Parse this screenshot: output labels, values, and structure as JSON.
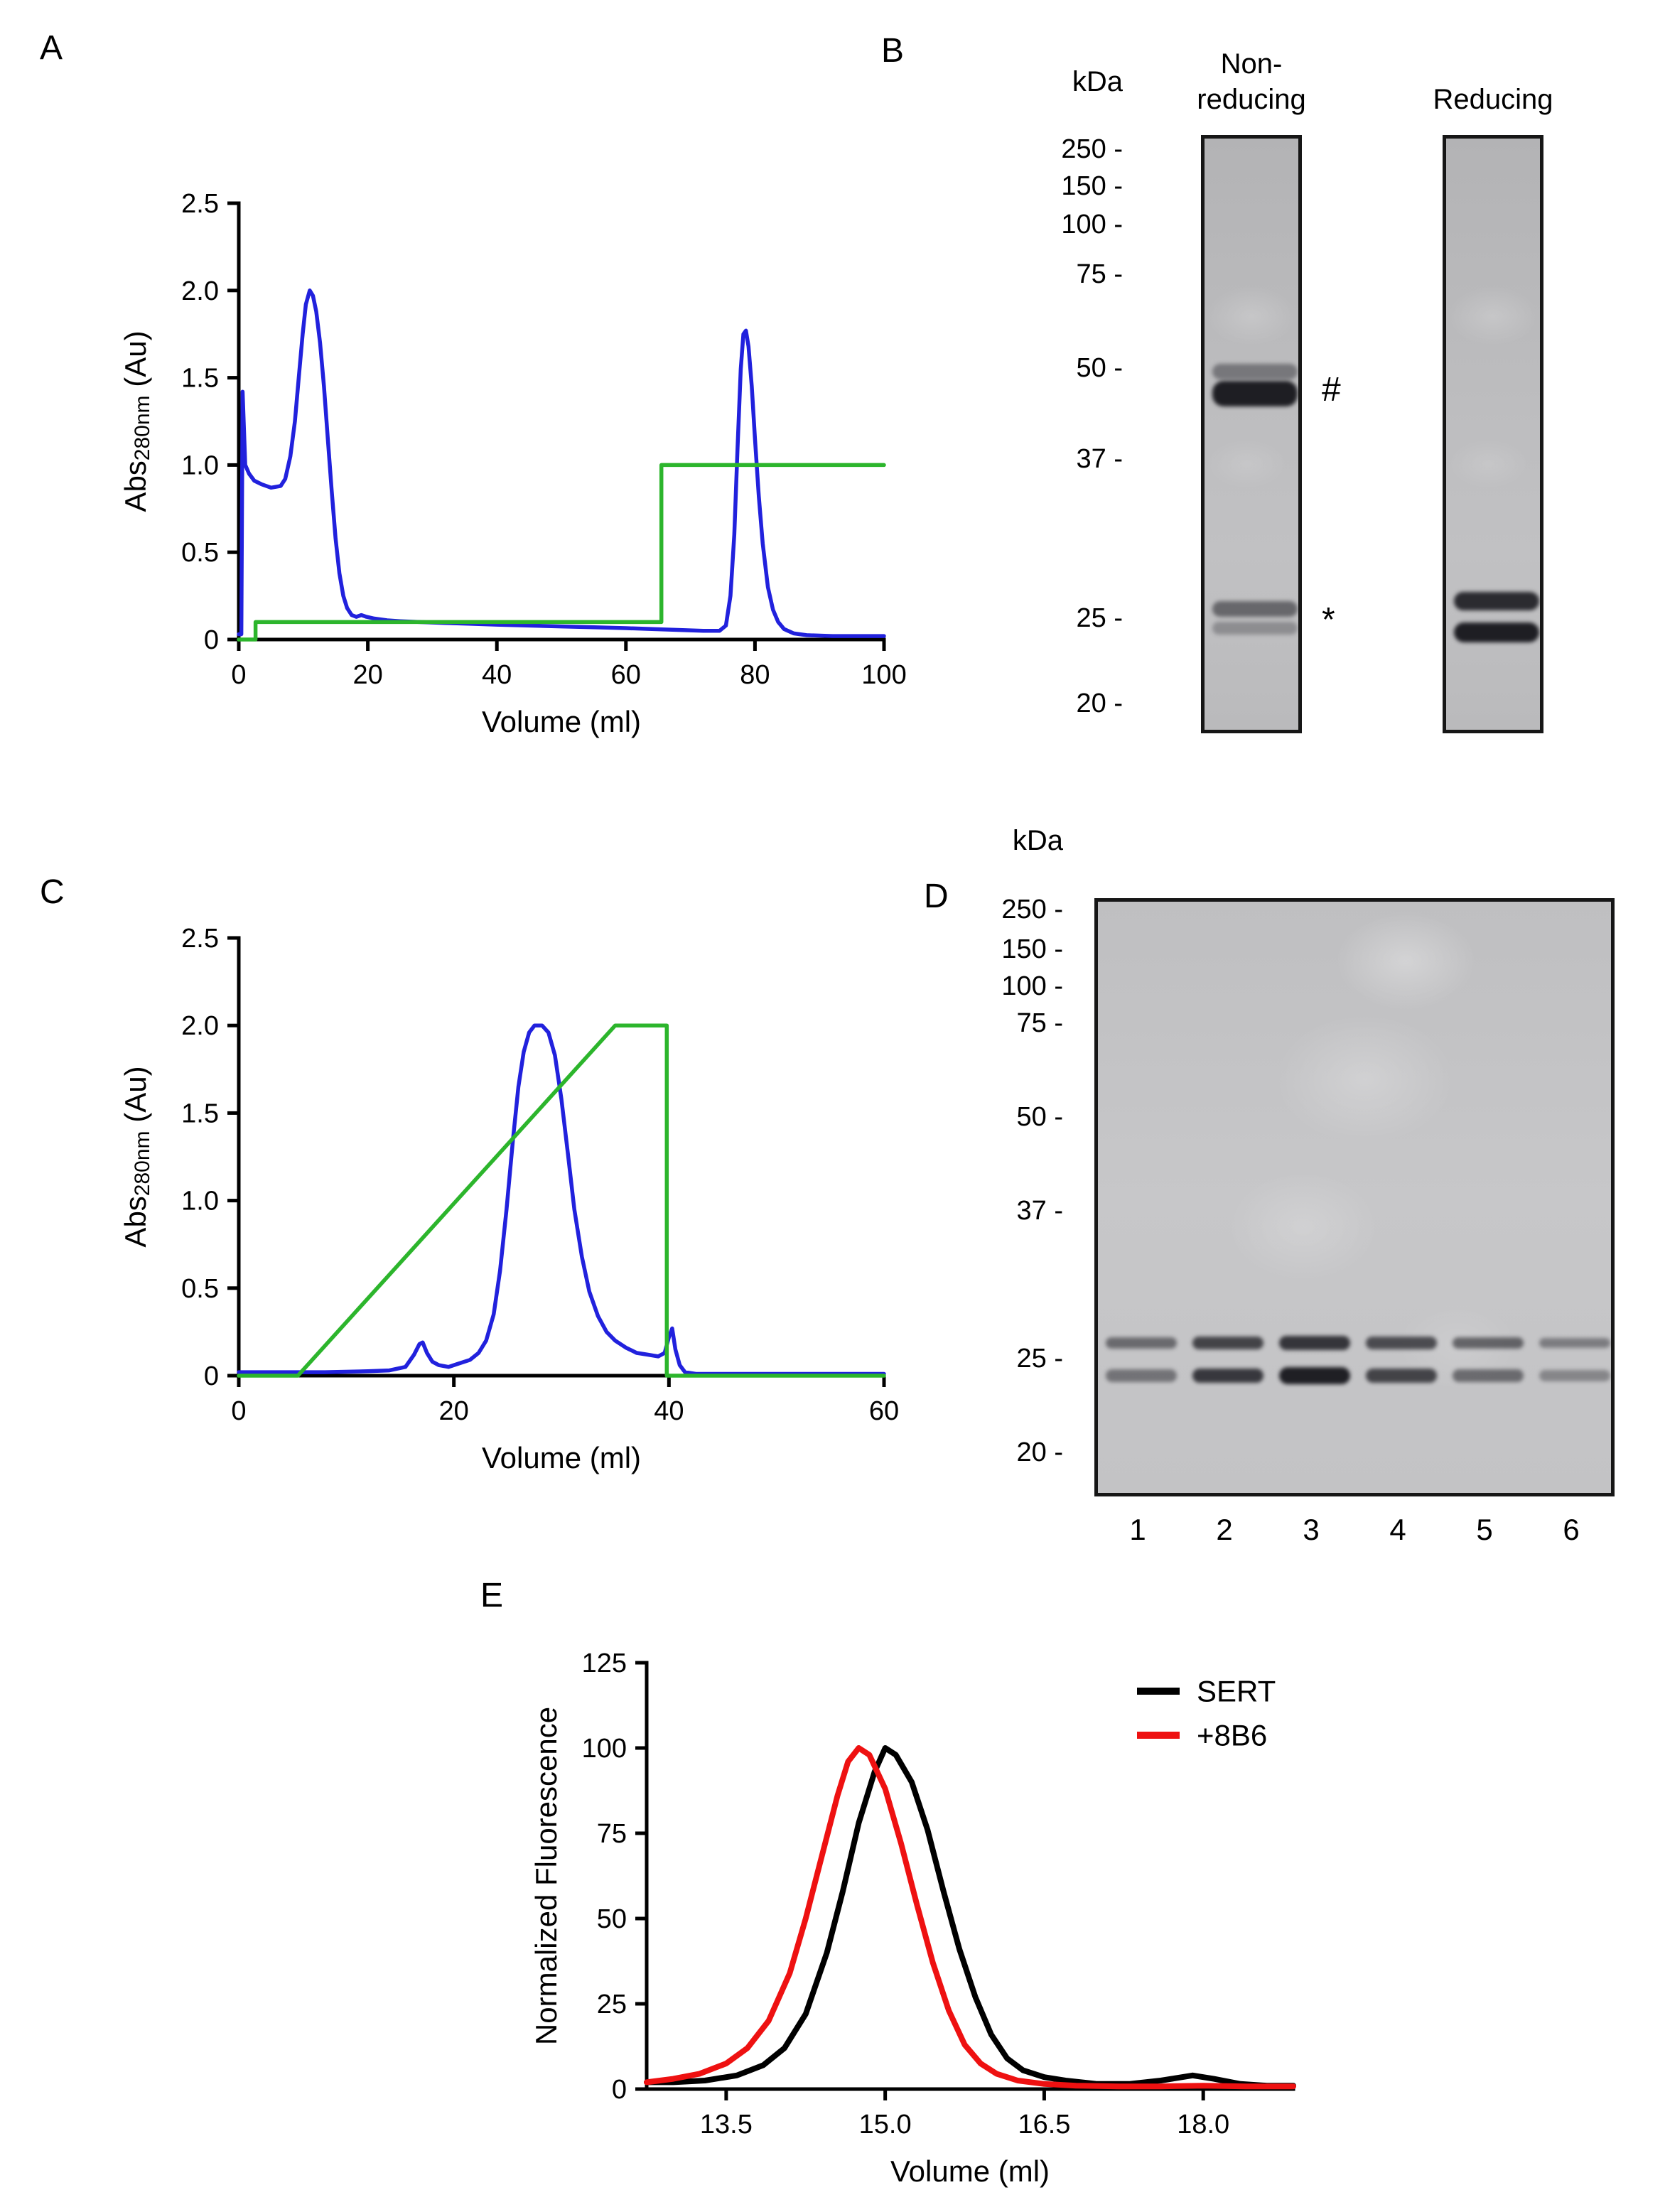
{
  "panel_labels": {
    "A": "A",
    "B": "B",
    "C": "C",
    "D": "D",
    "E": "E"
  },
  "chart_data": [
    {
      "id": "chrom_a",
      "panel": "A",
      "type": "line",
      "title": "",
      "xlabel": "Volume (ml)",
      "ylabel_parts": [
        {
          "text": "Abs"
        },
        {
          "text": "280nm",
          "sub": true
        },
        {
          "text": " (Au)"
        }
      ],
      "xlim": [
        0,
        100
      ],
      "ylim": [
        0,
        2.5
      ],
      "xticks": {
        "values": [
          0,
          20,
          40,
          60,
          80,
          100
        ],
        "labels": [
          "0",
          "20",
          "40",
          "60",
          "80",
          "100"
        ]
      },
      "yticks": {
        "values": [
          0,
          0.5,
          1,
          1.5,
          2,
          2.5
        ],
        "labels": [
          "0",
          "0.5",
          "1.0",
          "1.5",
          "2.0",
          "2.5"
        ]
      },
      "grid": false,
      "series": [
        {
          "id": "uv-absorbance",
          "color": "#2121dd",
          "points": [
            [
              0,
              0.03
            ],
            [
              0.4,
              0.03
            ],
            [
              0.6,
              1.42
            ],
            [
              1,
              1.0
            ],
            [
              1.6,
              0.95
            ],
            [
              2.4,
              0.91
            ],
            [
              3.5,
              0.89
            ],
            [
              5,
              0.87
            ],
            [
              6.5,
              0.88
            ],
            [
              7.2,
              0.92
            ],
            [
              8,
              1.05
            ],
            [
              8.7,
              1.25
            ],
            [
              9.3,
              1.5
            ],
            [
              9.9,
              1.75
            ],
            [
              10.4,
              1.92
            ],
            [
              11,
              2.0
            ],
            [
              11.5,
              1.97
            ],
            [
              12,
              1.88
            ],
            [
              12.6,
              1.7
            ],
            [
              13.2,
              1.45
            ],
            [
              13.8,
              1.15
            ],
            [
              14.4,
              0.85
            ],
            [
              15,
              0.58
            ],
            [
              15.6,
              0.38
            ],
            [
              16.2,
              0.25
            ],
            [
              16.8,
              0.18
            ],
            [
              17.5,
              0.14
            ],
            [
              18.2,
              0.13
            ],
            [
              19,
              0.14
            ],
            [
              19.8,
              0.13
            ],
            [
              21,
              0.12
            ],
            [
              23,
              0.11
            ],
            [
              25,
              0.105
            ],
            [
              28,
              0.1
            ],
            [
              32,
              0.095
            ],
            [
              36,
              0.09
            ],
            [
              40,
              0.085
            ],
            [
              45,
              0.08
            ],
            [
              50,
              0.075
            ],
            [
              55,
              0.07
            ],
            [
              60,
              0.065
            ],
            [
              64,
              0.06
            ],
            [
              68,
              0.055
            ],
            [
              72,
              0.05
            ],
            [
              74.5,
              0.05
            ],
            [
              75.5,
              0.08
            ],
            [
              76.2,
              0.25
            ],
            [
              76.8,
              0.6
            ],
            [
              77.3,
              1.1
            ],
            [
              77.8,
              1.55
            ],
            [
              78.2,
              1.75
            ],
            [
              78.6,
              1.77
            ],
            [
              79,
              1.68
            ],
            [
              79.5,
              1.45
            ],
            [
              80,
              1.15
            ],
            [
              80.6,
              0.82
            ],
            [
              81.2,
              0.55
            ],
            [
              82,
              0.3
            ],
            [
              82.8,
              0.17
            ],
            [
              83.6,
              0.1
            ],
            [
              84.5,
              0.06
            ],
            [
              86,
              0.035
            ],
            [
              88,
              0.025
            ],
            [
              92,
              0.02
            ],
            [
              96,
              0.02
            ],
            [
              100,
              0.02
            ]
          ]
        },
        {
          "id": "buffer-gradient",
          "color": "#2cb52c",
          "points": [
            [
              0,
              0
            ],
            [
              2.6,
              0
            ],
            [
              2.6,
              0.1
            ],
            [
              65.5,
              0.1
            ],
            [
              65.5,
              1.0
            ],
            [
              100,
              1.0
            ]
          ]
        }
      ]
    },
    {
      "id": "chrom_c",
      "panel": "C",
      "type": "line",
      "title": "",
      "xlabel": "Volume (ml)",
      "ylabel_parts": [
        {
          "text": "Abs"
        },
        {
          "text": "280nm",
          "sub": true
        },
        {
          "text": " (Au)"
        }
      ],
      "xlim": [
        0,
        60
      ],
      "ylim": [
        0,
        2.5
      ],
      "xticks": {
        "values": [
          0,
          20,
          40,
          60
        ],
        "labels": [
          "0",
          "20",
          "40",
          "60"
        ]
      },
      "yticks": {
        "values": [
          0,
          0.5,
          1,
          1.5,
          2,
          2.5
        ],
        "labels": [
          "0",
          "0.5",
          "1.0",
          "1.5",
          "2.0",
          "2.5"
        ]
      },
      "grid": false,
      "series": [
        {
          "id": "uv-absorbance",
          "color": "#2121dd",
          "points": [
            [
              0,
              0.02
            ],
            [
              4,
              0.02
            ],
            [
              8,
              0.02
            ],
            [
              12,
              0.025
            ],
            [
              14,
              0.03
            ],
            [
              15.5,
              0.05
            ],
            [
              16.3,
              0.12
            ],
            [
              16.8,
              0.18
            ],
            [
              17.1,
              0.19
            ],
            [
              17.5,
              0.13
            ],
            [
              18,
              0.08
            ],
            [
              18.6,
              0.06
            ],
            [
              19.5,
              0.05
            ],
            [
              20.5,
              0.07
            ],
            [
              21.5,
              0.09
            ],
            [
              22.3,
              0.13
            ],
            [
              23,
              0.2
            ],
            [
              23.7,
              0.35
            ],
            [
              24.3,
              0.6
            ],
            [
              24.9,
              0.95
            ],
            [
              25.5,
              1.35
            ],
            [
              26,
              1.65
            ],
            [
              26.5,
              1.85
            ],
            [
              27,
              1.96
            ],
            [
              27.5,
              2.0
            ],
            [
              28.2,
              2.0
            ],
            [
              28.8,
              1.96
            ],
            [
              29.4,
              1.83
            ],
            [
              30,
              1.58
            ],
            [
              30.6,
              1.27
            ],
            [
              31.2,
              0.95
            ],
            [
              31.9,
              0.68
            ],
            [
              32.6,
              0.48
            ],
            [
              33.4,
              0.34
            ],
            [
              34.2,
              0.25
            ],
            [
              35,
              0.2
            ],
            [
              36,
              0.16
            ],
            [
              37,
              0.13
            ],
            [
              38,
              0.12
            ],
            [
              39,
              0.11
            ],
            [
              39.6,
              0.13
            ],
            [
              40,
              0.22
            ],
            [
              40.3,
              0.27
            ],
            [
              40.6,
              0.15
            ],
            [
              41,
              0.06
            ],
            [
              41.5,
              0.02
            ],
            [
              42.5,
              0.01
            ],
            [
              45,
              0.01
            ],
            [
              50,
              0.01
            ],
            [
              55,
              0.01
            ],
            [
              60,
              0.01
            ]
          ]
        },
        {
          "id": "buffer-gradient",
          "color": "#2cb52c",
          "points": [
            [
              0,
              0
            ],
            [
              5.5,
              0
            ],
            [
              35,
              2.0
            ],
            [
              39.8,
              2.0
            ],
            [
              39.8,
              0
            ],
            [
              60,
              0
            ]
          ]
        }
      ]
    },
    {
      "id": "fsec_e",
      "panel": "E",
      "type": "line",
      "title": "",
      "xlabel": "Volume (ml)",
      "ylabel_parts": [
        {
          "text": "Normalized Fluorescence"
        }
      ],
      "xlim": [
        12.75,
        18.85
      ],
      "ylim": [
        0,
        125
      ],
      "xticks": {
        "values": [
          13.5,
          15.0,
          16.5,
          18.0
        ],
        "labels": [
          "13.5",
          "15.0",
          "16.5",
          "18.0"
        ]
      },
      "yticks": {
        "values": [
          0,
          25,
          50,
          75,
          100,
          125
        ],
        "labels": [
          "0",
          "25",
          "50",
          "75",
          "100",
          "125"
        ]
      },
      "grid": false,
      "legend": true,
      "series": [
        {
          "id": "sert",
          "name": "SERT",
          "color": "#000000",
          "points": [
            [
              12.75,
              2
            ],
            [
              13.0,
              2
            ],
            [
              13.3,
              2.5
            ],
            [
              13.6,
              4
            ],
            [
              13.85,
              7
            ],
            [
              14.05,
              12
            ],
            [
              14.25,
              22
            ],
            [
              14.45,
              40
            ],
            [
              14.6,
              58
            ],
            [
              14.75,
              78
            ],
            [
              14.9,
              93
            ],
            [
              15.0,
              100
            ],
            [
              15.1,
              98
            ],
            [
              15.25,
              90
            ],
            [
              15.4,
              76
            ],
            [
              15.55,
              58
            ],
            [
              15.7,
              41
            ],
            [
              15.85,
              27
            ],
            [
              16.0,
              16
            ],
            [
              16.15,
              9
            ],
            [
              16.3,
              5.5
            ],
            [
              16.5,
              3.5
            ],
            [
              16.7,
              2.5
            ],
            [
              17.0,
              1.5
            ],
            [
              17.3,
              1.5
            ],
            [
              17.6,
              2.5
            ],
            [
              17.9,
              4
            ],
            [
              18.1,
              3
            ],
            [
              18.35,
              1.5
            ],
            [
              18.6,
              1
            ],
            [
              18.85,
              1
            ]
          ]
        },
        {
          "id": "plus-8b6",
          "name": "+8B6",
          "color": "#ee1111",
          "points": [
            [
              12.75,
              2
            ],
            [
              13.0,
              3
            ],
            [
              13.25,
              4.5
            ],
            [
              13.5,
              7.5
            ],
            [
              13.7,
              12
            ],
            [
              13.9,
              20
            ],
            [
              14.1,
              34
            ],
            [
              14.25,
              50
            ],
            [
              14.4,
              68
            ],
            [
              14.55,
              86
            ],
            [
              14.65,
              96
            ],
            [
              14.75,
              100
            ],
            [
              14.85,
              98
            ],
            [
              15.0,
              88
            ],
            [
              15.15,
              72
            ],
            [
              15.3,
              54
            ],
            [
              15.45,
              37
            ],
            [
              15.6,
              23
            ],
            [
              15.75,
              13
            ],
            [
              15.9,
              7.5
            ],
            [
              16.05,
              4.5
            ],
            [
              16.25,
              2.5
            ],
            [
              16.5,
              1.5
            ],
            [
              16.8,
              1
            ],
            [
              17.2,
              0.8
            ],
            [
              17.6,
              0.8
            ],
            [
              18.0,
              1
            ],
            [
              18.4,
              0.8
            ],
            [
              18.85,
              0.8
            ]
          ]
        }
      ]
    }
  ],
  "gels": {
    "B": {
      "kda_header": "kDa",
      "markers": [
        "250 -",
        "150 -",
        "100 -",
        "75 -",
        "50 -",
        "37 -",
        "25 -",
        "20 -"
      ],
      "lanes": [
        {
          "title_lines": [
            "Non-",
            "reducing"
          ],
          "bands": [
            {
              "kda": 50,
              "intensity": 0.4,
              "h": 22
            },
            {
              "kda": 46.5,
              "intensity": 0.92,
              "h": 36
            },
            {
              "kda": 25.8,
              "intensity": 0.5,
              "h": 22
            },
            {
              "kda": 24.6,
              "intensity": 0.28,
              "h": 18
            }
          ],
          "annotations": [
            {
              "text": "#",
              "kda": 46.5,
              "dy": 0
            },
            {
              "text": "*",
              "kda": 25.3,
              "dy": 10
            }
          ]
        },
        {
          "title_lines": [
            "Reducing"
          ],
          "bands": [
            {
              "kda": 26.3,
              "intensity": 0.85,
              "h": 26
            },
            {
              "kda": 24.3,
              "intensity": 0.92,
              "h": 28
            }
          ],
          "annotations": []
        }
      ]
    },
    "D": {
      "kda_header": "kDa",
      "markers": [
        "250 -",
        "150 -",
        "100 -",
        "75 -",
        "50 -",
        "37 -",
        "25 -",
        "20 -"
      ],
      "lane_numbers": [
        "1",
        "2",
        "3",
        "4",
        "5",
        "6"
      ],
      "lanes": [
        {
          "bands": [
            {
              "kda": 26.3,
              "intensity": 0.5,
              "h": 16
            },
            {
              "kda": 24.2,
              "intensity": 0.45,
              "h": 18
            }
          ]
        },
        {
          "bands": [
            {
              "kda": 26.3,
              "intensity": 0.72,
              "h": 18
            },
            {
              "kda": 24.2,
              "intensity": 0.78,
              "h": 20
            }
          ]
        },
        {
          "bands": [
            {
              "kda": 26.3,
              "intensity": 0.8,
              "h": 20
            },
            {
              "kda": 24.2,
              "intensity": 0.92,
              "h": 24
            }
          ]
        },
        {
          "bands": [
            {
              "kda": 26.3,
              "intensity": 0.68,
              "h": 18
            },
            {
              "kda": 24.2,
              "intensity": 0.72,
              "h": 20
            }
          ]
        },
        {
          "bands": [
            {
              "kda": 26.3,
              "intensity": 0.55,
              "h": 16
            },
            {
              "kda": 24.2,
              "intensity": 0.5,
              "h": 18
            }
          ]
        },
        {
          "bands": [
            {
              "kda": 26.3,
              "intensity": 0.4,
              "h": 14
            },
            {
              "kda": 24.2,
              "intensity": 0.35,
              "h": 16
            }
          ]
        }
      ]
    }
  }
}
